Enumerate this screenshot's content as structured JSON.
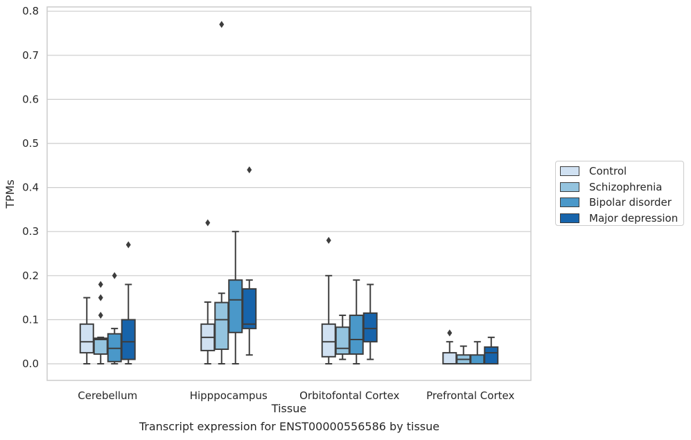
{
  "chart_data": {
    "type": "box",
    "title": "",
    "caption": "Transcript expression for ENST00000556586 by tissue",
    "xlabel": "Tissue",
    "ylabel": "TPMs",
    "ylim": [
      -0.037,
      0.812
    ],
    "yticks": [
      0.0,
      0.1,
      0.2,
      0.3,
      0.4,
      0.5,
      0.6,
      0.7,
      0.8
    ],
    "ytick_labels": [
      "0.0",
      "0.1",
      "0.2",
      "0.3",
      "0.4",
      "0.5",
      "0.6",
      "0.7",
      "0.8"
    ],
    "grid": true,
    "legend_position": "right",
    "categories": [
      "Cerebellum",
      "Hipppocampus",
      "Orbitofontal Cortex",
      "Prefrontal Cortex"
    ],
    "series": [
      {
        "name": "Control",
        "color": "#d0e1f2",
        "boxes": [
          {
            "whislo": 0.0,
            "q1": 0.025,
            "med": 0.05,
            "q3": 0.09,
            "whishi": 0.15,
            "fliers": []
          },
          {
            "whislo": 0.0,
            "q1": 0.03,
            "med": 0.06,
            "q3": 0.09,
            "whishi": 0.14,
            "fliers": [
              0.32
            ]
          },
          {
            "whislo": 0.0,
            "q1": 0.016,
            "med": 0.05,
            "q3": 0.09,
            "whishi": 0.2,
            "fliers": [
              0.28
            ]
          },
          {
            "whislo": 0.0,
            "q1": 0.0,
            "med": 0.0,
            "q3": 0.025,
            "whishi": 0.05,
            "fliers": [
              0.07
            ]
          }
        ]
      },
      {
        "name": "Schizophrenia",
        "color": "#94c4df",
        "boxes": [
          {
            "whislo": 0.0,
            "q1": 0.022,
            "med": 0.055,
            "q3": 0.058,
            "whishi": 0.06,
            "fliers": [
              0.11,
              0.15,
              0.18
            ]
          },
          {
            "whislo": 0.0,
            "q1": 0.033,
            "med": 0.1,
            "q3": 0.139,
            "whishi": 0.16,
            "fliers": [
              0.77
            ]
          },
          {
            "whislo": 0.01,
            "q1": 0.022,
            "med": 0.035,
            "q3": 0.083,
            "whishi": 0.11,
            "fliers": []
          },
          {
            "whislo": 0.0,
            "q1": 0.0,
            "med": 0.01,
            "q3": 0.02,
            "whishi": 0.04,
            "fliers": []
          }
        ]
      },
      {
        "name": "Bipolar disorder",
        "color": "#4a98c9",
        "boxes": [
          {
            "whislo": 0.0,
            "q1": 0.005,
            "med": 0.035,
            "q3": 0.068,
            "whishi": 0.08,
            "fliers": [
              0.2
            ]
          },
          {
            "whislo": 0.0,
            "q1": 0.071,
            "med": 0.145,
            "q3": 0.19,
            "whishi": 0.3,
            "fliers": []
          },
          {
            "whislo": 0.0,
            "q1": 0.022,
            "med": 0.055,
            "q3": 0.11,
            "whishi": 0.19,
            "fliers": []
          },
          {
            "whislo": 0.0,
            "q1": 0.0,
            "med": 0.0,
            "q3": 0.02,
            "whishi": 0.05,
            "fliers": []
          }
        ]
      },
      {
        "name": "Major depression",
        "color": "#1764ab",
        "boxes": [
          {
            "whislo": 0.0,
            "q1": 0.01,
            "med": 0.05,
            "q3": 0.1,
            "whishi": 0.18,
            "fliers": [
              0.27
            ]
          },
          {
            "whislo": 0.02,
            "q1": 0.08,
            "med": 0.09,
            "q3": 0.17,
            "whishi": 0.19,
            "fliers": [
              0.44
            ]
          },
          {
            "whislo": 0.01,
            "q1": 0.05,
            "med": 0.08,
            "q3": 0.115,
            "whishi": 0.18,
            "fliers": []
          },
          {
            "whislo": 0.0,
            "q1": 0.0,
            "med": 0.025,
            "q3": 0.038,
            "whishi": 0.06,
            "fliers": []
          }
        ]
      }
    ]
  }
}
